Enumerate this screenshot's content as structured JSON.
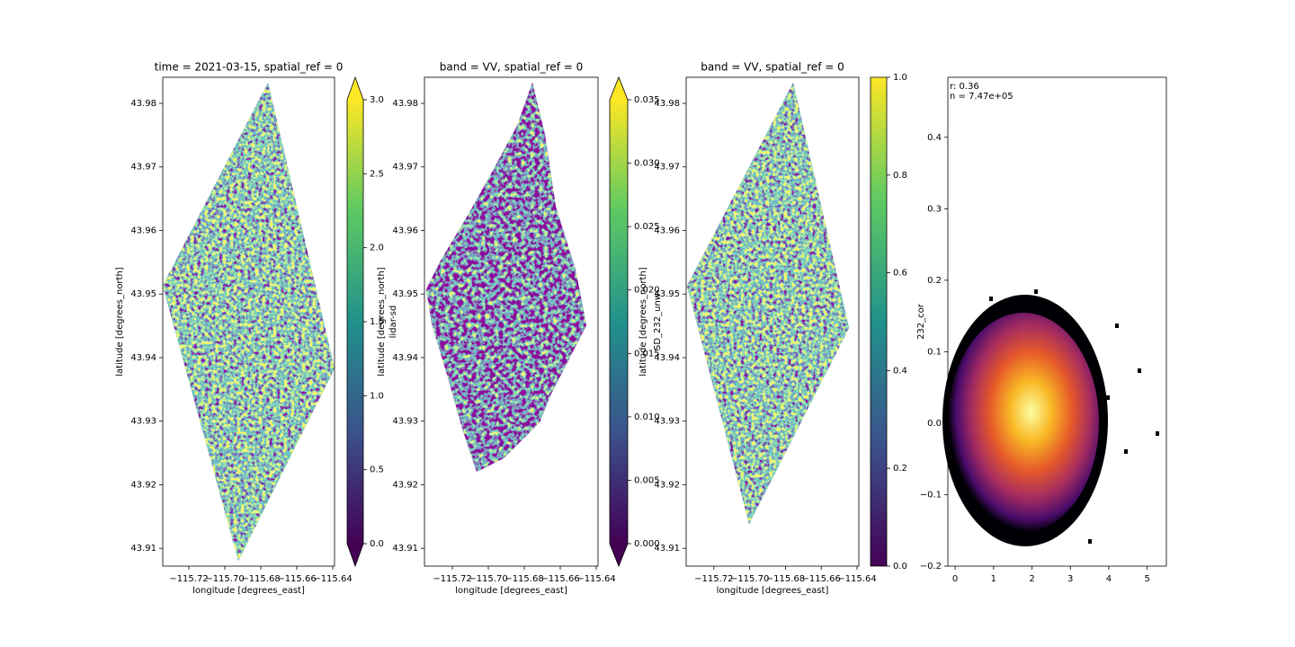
{
  "chart_data": [
    {
      "type": "raster",
      "title": "time = 2021-03-15, spatial_ref = 0",
      "xlabel": "longitude [degrees_east]",
      "ylabel": "latitude [degrees_north]",
      "xlim": [
        -115.7345,
        -115.639
      ],
      "ylim": [
        43.9072,
        43.9841
      ],
      "xticks": [
        {
          "value": -115.72,
          "label": "−115.72"
        },
        {
          "value": -115.7,
          "label": "−115.70"
        },
        {
          "value": -115.68,
          "label": "−115.68"
        },
        {
          "value": -115.66,
          "label": "−115.66"
        },
        {
          "value": -115.64,
          "label": "−115.64"
        }
      ],
      "yticks": [
        43.91,
        43.92,
        43.93,
        43.94,
        43.95,
        43.96,
        43.97,
        43.98
      ],
      "colorbar": {
        "label": "lidar-sd",
        "lim": [
          0,
          3
        ],
        "extend": "both",
        "ticks": [
          {
            "value": 0,
            "label": "0.0"
          },
          0.5,
          {
            "value": 1,
            "label": "1.0"
          },
          1.5,
          {
            "value": 2,
            "label": "2.0"
          },
          2.5,
          {
            "value": 3,
            "label": "3.0"
          }
        ]
      }
    },
    {
      "type": "raster",
      "title": "band = VV, spatial_ref = 0",
      "xlabel": "longitude [degrees_east]",
      "ylabel": "latitude [degrees_north]",
      "xlim": [
        -115.7355,
        -115.639
      ],
      "ylim": [
        43.9072,
        43.9841
      ],
      "xticks": [
        {
          "value": -115.72,
          "label": "−115.72"
        },
        {
          "value": -115.7,
          "label": "−115.70"
        },
        {
          "value": -115.68,
          "label": "−115.68"
        },
        {
          "value": -115.66,
          "label": "−115.66"
        },
        {
          "value": -115.64,
          "label": "−115.64"
        }
      ],
      "yticks": [
        43.91,
        43.92,
        43.93,
        43.94,
        43.95,
        43.96,
        43.97,
        43.98
      ],
      "colorbar": {
        "label": "SD_232_unw",
        "lim": [
          0,
          0.035
        ],
        "extend": "both",
        "ticks": [
          {
            "value": 0,
            "label": "0.000"
          },
          0.005,
          {
            "value": 0.01,
            "label": "0.010"
          },
          0.015,
          {
            "value": 0.02,
            "label": "0.020"
          },
          0.025,
          {
            "value": 0.03,
            "label": "0.030"
          },
          0.035
        ]
      }
    },
    {
      "type": "raster",
      "title": "band = VV, spatial_ref = 0",
      "xlabel": "longitude [degrees_east]",
      "ylabel": "latitude [degrees_north]",
      "xlim": [
        -115.7355,
        -115.639
      ],
      "ylim": [
        43.9072,
        43.9841
      ],
      "xticks": [
        {
          "value": -115.72,
          "label": "−115.72"
        },
        {
          "value": -115.7,
          "label": "−115.70"
        },
        {
          "value": -115.68,
          "label": "−115.68"
        },
        {
          "value": -115.66,
          "label": "−115.66"
        },
        {
          "value": -115.64,
          "label": "−115.64"
        }
      ],
      "yticks": [
        43.91,
        43.92,
        43.93,
        43.94,
        43.95,
        43.96,
        43.97,
        43.98
      ],
      "colorbar": {
        "lim": [
          0,
          1
        ],
        "extend": "neither",
        "ticks": [
          {
            "value": 0,
            "label": "0.0"
          },
          0.2,
          0.4,
          0.6,
          0.8,
          {
            "value": 1,
            "label": "1.0"
          }
        ]
      }
    },
    {
      "type": "hist2d",
      "ylabel": "232_cor",
      "annotations": [
        "r: 0.36",
        "n = 7.47e+05"
      ],
      "xlim": [
        -0.19,
        5.5
      ],
      "ylim": [
        -0.2,
        0.484
      ],
      "xticks": [
        0,
        1,
        2,
        3,
        4,
        5
      ],
      "yticks": [
        {
          "value": -0.2,
          "label": "−0.2"
        },
        {
          "value": -0.1,
          "label": "−0.1"
        },
        {
          "value": 0,
          "label": "0.0"
        },
        0.1,
        0.2,
        0.3,
        0.4
      ]
    }
  ]
}
